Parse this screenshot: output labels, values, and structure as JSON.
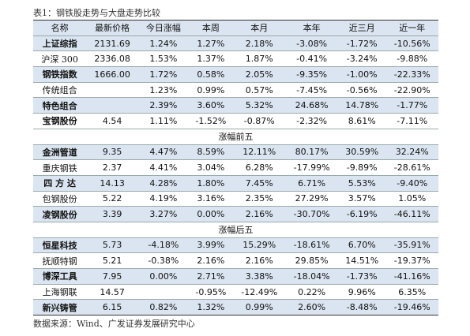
{
  "caption": "表1：钢铁股走势与大盘走势比较",
  "table": {
    "header": [
      "名称",
      "最新价格",
      "今日涨幅",
      "本周",
      "本月",
      "本年",
      "近三月",
      "近一年"
    ],
    "rows": [
      [
        "上证综指",
        "2131.69",
        "1.24%",
        "1.27%",
        "2.18%",
        "-3.08%",
        "-1.72%",
        "-10.56%"
      ],
      [
        "沪深 300",
        "2336.08",
        "1.53%",
        "1.37%",
        "1.87%",
        "-0.41%",
        "-3.24%",
        "-9.88%"
      ],
      [
        "钢铁指数",
        "1666.00",
        "1.72%",
        "0.58%",
        "2.05%",
        "-9.35%",
        "-1.00%",
        "-22.33%"
      ],
      [
        "传统组合",
        null,
        "1.23%",
        "0.99%",
        "0.57%",
        "-7.45%",
        "-0.56%",
        "-22.90%"
      ],
      [
        "特色组合",
        null,
        "2.39%",
        "3.60%",
        "5.32%",
        "24.68%",
        "14.78%",
        "-1.77%"
      ],
      [
        "宝钢股份",
        "4.54",
        "1.11%",
        "-1.52%",
        "-0.87%",
        "-2.32%",
        "8.61%",
        "-7.11%"
      ],
      [
        "涨幅前五"
      ],
      [
        "金洲管道",
        "9.35",
        "4.47%",
        "8.59%",
        "12.11%",
        "80.17%",
        "30.59%",
        "32.24%"
      ],
      [
        "重庆钢铁",
        "2.37",
        "4.41%",
        "3.04%",
        "6.28%",
        "-17.99%",
        "-9.89%",
        "-28.61%"
      ],
      [
        "四 方 达",
        "14.13",
        "4.28%",
        "1.80%",
        "7.45%",
        "6.71%",
        "5.53%",
        "-9.40%"
      ],
      [
        "包钢股份",
        "5.22",
        "4.19%",
        "3.16%",
        "2.35%",
        "27.29%",
        "3.57%",
        "1.05%"
      ],
      [
        "凌钢股份",
        "3.39",
        "3.27%",
        "0.00%",
        "2.16%",
        "-30.70%",
        "-6.19%",
        "-46.11%"
      ],
      [
        "涨幅后五"
      ],
      [
        "恒星科技",
        "5.73",
        "-4.18%",
        "3.99%",
        "15.29%",
        "-18.61%",
        "6.70%",
        "-35.91%"
      ],
      [
        "抚顺特钢",
        "5.21",
        "-0.38%",
        "2.16%",
        "2.16%",
        "29.85%",
        "14.51%",
        "-19.37%"
      ],
      [
        "博深工具",
        "7.95",
        "0.00%",
        "2.71%",
        "3.38%",
        "-18.04%",
        "-1.73%",
        "-41.16%"
      ],
      [
        "上海钢联",
        "14.57",
        null,
        "-0.95%",
        "-12.49%",
        "0.22%",
        "9.96%",
        "6.35%"
      ],
      [
        "新兴铸管",
        "6.15",
        "0.82%",
        "1.32%",
        "0.99%",
        "2.60%",
        "-8.48%",
        "-19.46%"
      ]
    ]
  },
  "source": "数据来源：Wind、广发证券发展研究中心"
}
